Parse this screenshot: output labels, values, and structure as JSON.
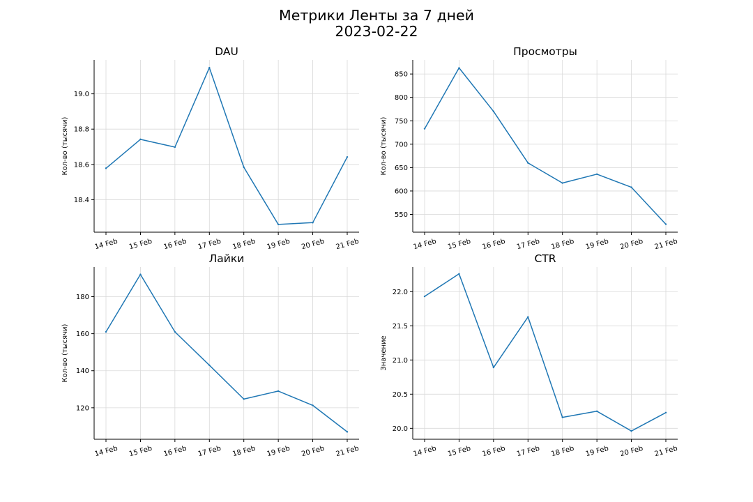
{
  "figure": {
    "title_line1": "Метрики Ленты за 7 дней",
    "title_line2": "2023-02-22"
  },
  "line_color": "#1f77b4",
  "chart_data": [
    {
      "type": "line",
      "title": "DAU",
      "xlabel": "",
      "ylabel": "Кол-во (тысячи)",
      "categories": [
        "14 Feb",
        "15 Feb",
        "16 Feb",
        "17 Feb",
        "18 Feb",
        "19 Feb",
        "20 Feb",
        "21 Feb"
      ],
      "values": [
        18.578,
        18.742,
        18.698,
        19.148,
        18.584,
        18.26,
        18.27,
        18.642
      ],
      "yticks": [
        18.4,
        18.6,
        18.8,
        19.0
      ],
      "ytick_labels": [
        "18.4",
        "18.6",
        "18.8",
        "19.0"
      ],
      "ylim": [
        18.216,
        19.192
      ],
      "grid": true
    },
    {
      "type": "line",
      "title": "Просмотры",
      "xlabel": "",
      "ylabel": "Кол-во (тысячи)",
      "categories": [
        "14 Feb",
        "15 Feb",
        "16 Feb",
        "17 Feb",
        "18 Feb",
        "19 Feb",
        "20 Feb",
        "21 Feb"
      ],
      "values": [
        733,
        863,
        770,
        660,
        617,
        636,
        608,
        529
      ],
      "yticks": [
        550,
        600,
        650,
        700,
        750,
        800,
        850
      ],
      "ytick_labels": [
        "550",
        "600",
        "650",
        "700",
        "750",
        "800",
        "850"
      ],
      "ylim": [
        512,
        880
      ],
      "grid": true
    },
    {
      "type": "line",
      "title": "Лайки",
      "xlabel": "",
      "ylabel": "Кол-во (тысячи)",
      "categories": [
        "14 Feb",
        "15 Feb",
        "16 Feb",
        "17 Feb",
        "18 Feb",
        "19 Feb",
        "20 Feb",
        "21 Feb"
      ],
      "values": [
        161,
        192,
        161,
        143,
        124.7,
        129,
        121.3,
        107
      ],
      "yticks": [
        120,
        140,
        160,
        180
      ],
      "ytick_labels": [
        "120",
        "140",
        "160",
        "180"
      ],
      "ylim": [
        103,
        196
      ],
      "grid": true
    },
    {
      "type": "line",
      "title": "CTR",
      "xlabel": "",
      "ylabel": "Значение",
      "categories": [
        "14 Feb",
        "15 Feb",
        "16 Feb",
        "17 Feb",
        "18 Feb",
        "19 Feb",
        "20 Feb",
        "21 Feb"
      ],
      "values": [
        21.93,
        22.26,
        20.89,
        21.63,
        20.16,
        20.25,
        19.96,
        20.23
      ],
      "yticks": [
        20.0,
        20.5,
        21.0,
        21.5,
        22.0
      ],
      "ytick_labels": [
        "20.0",
        "20.5",
        "21.0",
        "21.5",
        "22.0"
      ],
      "ylim": [
        19.84,
        22.36
      ],
      "grid": true
    }
  ]
}
